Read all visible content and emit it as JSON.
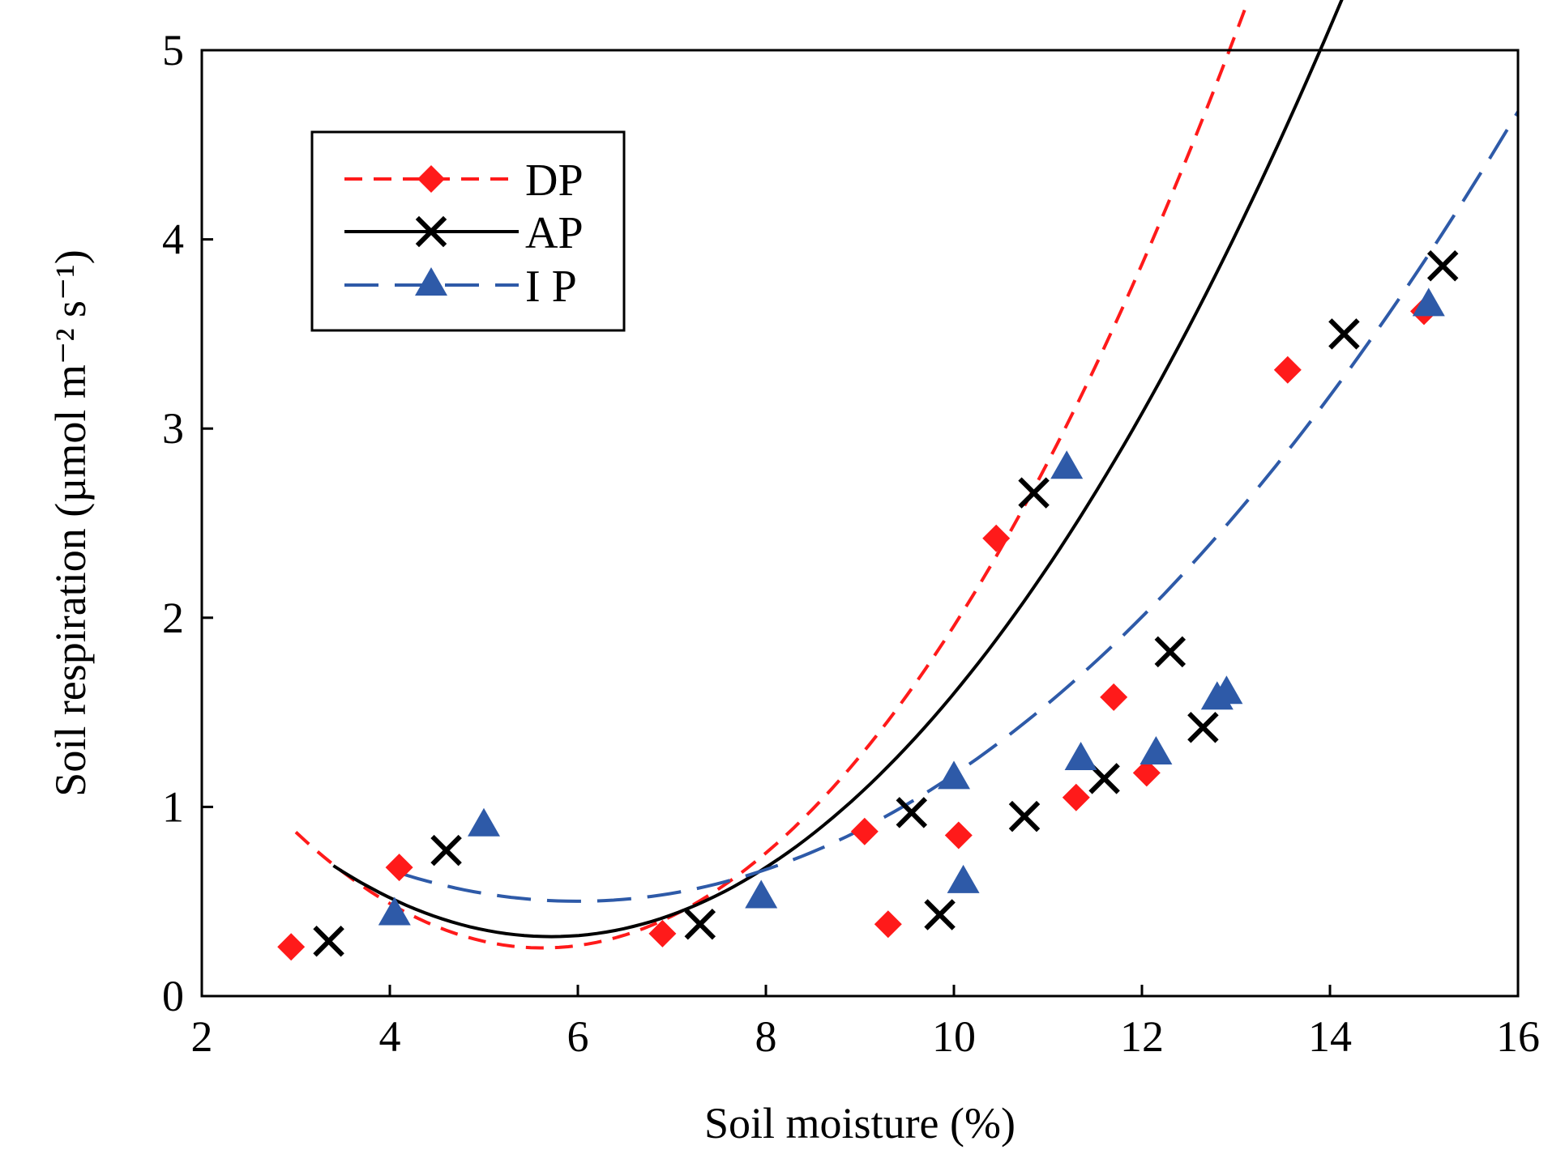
{
  "chart_data": {
    "type": "scatter",
    "title": "",
    "xlabel": "Soil moisture (%)",
    "ylabel": "Soil respiration (µmol m⁻² s⁻¹)",
    "xlim": [
      2,
      16
    ],
    "ylim": [
      0,
      5
    ],
    "xticks": [
      "2",
      "4",
      "6",
      "8",
      "10",
      "12",
      "14",
      "16"
    ],
    "yticks": [
      "0",
      "1",
      "2",
      "3",
      "4",
      "5"
    ],
    "grid": false,
    "legend_position": "top-left",
    "series": [
      {
        "name": "DP",
        "marker": "diamond",
        "color": "#ff1a1a",
        "line_style": "dashed",
        "x": [
          2.95,
          4.1,
          6.9,
          9.05,
          9.3,
          10.05,
          10.45,
          11.3,
          11.7,
          12.05,
          13.55,
          15.0
        ],
        "y": [
          0.26,
          0.68,
          0.33,
          0.87,
          0.38,
          0.85,
          2.42,
          1.05,
          1.58,
          1.18,
          3.31,
          3.62
        ],
        "fit_x": [
          3.0,
          15.0
        ],
        "fit_coeffs": [
          3.0667,
          -1.0,
          0.0889
        ]
      },
      {
        "name": "AP",
        "marker": "x",
        "color": "#000000",
        "line_style": "solid",
        "x": [
          3.35,
          4.6,
          7.3,
          9.55,
          9.85,
          10.75,
          10.85,
          11.6,
          12.3,
          12.65,
          14.15,
          15.2
        ],
        "y": [
          0.29,
          0.77,
          0.38,
          0.97,
          0.43,
          0.95,
          2.66,
          1.15,
          1.82,
          1.42,
          3.5,
          3.86
        ],
        "fit_x": [
          3.4,
          15.0
        ],
        "fit_coeffs": [
          2.6,
          -0.8,
          0.07
        ]
      },
      {
        "name": "I P",
        "marker": "triangle",
        "color": "#2e5aa8",
        "line_style": "dashed",
        "x": [
          4.05,
          5.0,
          7.95,
          10.0,
          10.1,
          11.2,
          11.35,
          12.15,
          12.8,
          12.9,
          15.05
        ],
        "y": [
          0.43,
          0.9,
          0.52,
          1.15,
          0.6,
          2.79,
          1.25,
          1.28,
          1.57,
          1.6,
          3.65
        ],
        "fit_x": [
          4.1,
          16.0
        ],
        "fit_coeffs": [
          2.0,
          -0.5,
          0.0417
        ]
      }
    ]
  }
}
